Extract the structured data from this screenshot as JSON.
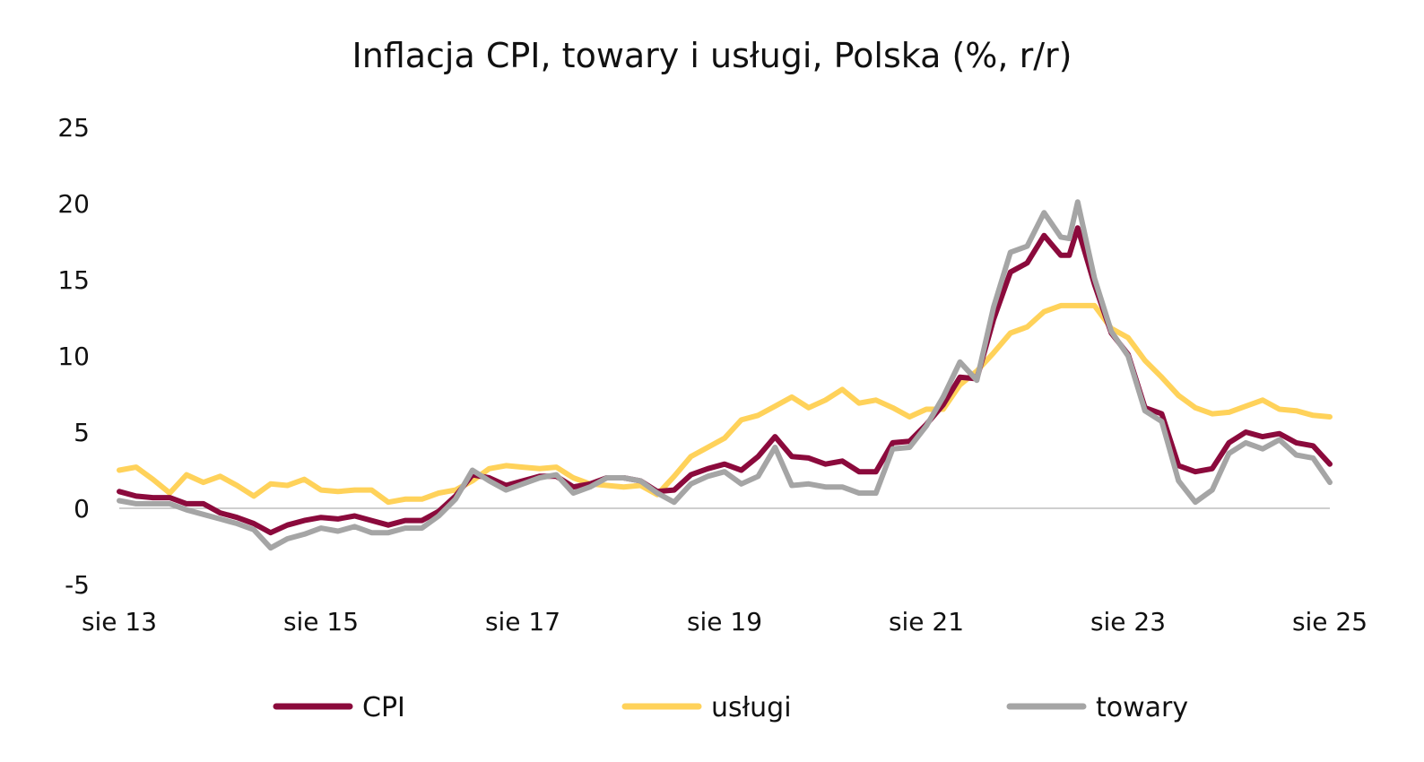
{
  "chart_data": {
    "type": "line",
    "title": "Inflacja CPI, towary i usługi, Polska (%, r/r)",
    "xlabel": "",
    "ylabel": "",
    "x_ticks": [
      "sie 13",
      "sie 15",
      "sie 17",
      "sie 19",
      "sie 21",
      "sie 23",
      "sie 25"
    ],
    "y_ticks": [
      "25",
      "20",
      "15",
      "10",
      "5",
      "0",
      "-5"
    ],
    "ylim": [
      -5,
      25
    ],
    "xlim": [
      "2013-08",
      "2025-08"
    ],
    "grid": false,
    "zero_line": true,
    "legend_position": "bottom",
    "series": [
      {
        "name": "CPI",
        "color": "#8b0a3c",
        "points": [
          [
            "2013-08",
            1.1
          ],
          [
            "2013-10",
            0.8
          ],
          [
            "2013-12",
            0.7
          ],
          [
            "2014-02",
            0.7
          ],
          [
            "2014-04",
            0.3
          ],
          [
            "2014-06",
            0.3
          ],
          [
            "2014-08",
            -0.3
          ],
          [
            "2014-10",
            -0.6
          ],
          [
            "2014-12",
            -1.0
          ],
          [
            "2015-02",
            -1.6
          ],
          [
            "2015-04",
            -1.1
          ],
          [
            "2015-06",
            -0.8
          ],
          [
            "2015-08",
            -0.6
          ],
          [
            "2015-10",
            -0.7
          ],
          [
            "2015-12",
            -0.5
          ],
          [
            "2016-02",
            -0.8
          ],
          [
            "2016-04",
            -1.1
          ],
          [
            "2016-06",
            -0.8
          ],
          [
            "2016-08",
            -0.8
          ],
          [
            "2016-10",
            -0.2
          ],
          [
            "2016-12",
            0.8
          ],
          [
            "2017-02",
            2.2
          ],
          [
            "2017-04",
            2.0
          ],
          [
            "2017-06",
            1.5
          ],
          [
            "2017-08",
            1.8
          ],
          [
            "2017-10",
            2.1
          ],
          [
            "2017-12",
            2.1
          ],
          [
            "2018-02",
            1.4
          ],
          [
            "2018-04",
            1.6
          ],
          [
            "2018-06",
            2.0
          ],
          [
            "2018-08",
            2.0
          ],
          [
            "2018-10",
            1.8
          ],
          [
            "2018-12",
            1.1
          ],
          [
            "2019-02",
            1.2
          ],
          [
            "2019-04",
            2.2
          ],
          [
            "2019-06",
            2.6
          ],
          [
            "2019-08",
            2.9
          ],
          [
            "2019-10",
            2.5
          ],
          [
            "2019-12",
            3.4
          ],
          [
            "2020-02",
            4.7
          ],
          [
            "2020-04",
            3.4
          ],
          [
            "2020-06",
            3.3
          ],
          [
            "2020-08",
            2.9
          ],
          [
            "2020-10",
            3.1
          ],
          [
            "2020-12",
            2.4
          ],
          [
            "2021-02",
            2.4
          ],
          [
            "2021-04",
            4.3
          ],
          [
            "2021-06",
            4.4
          ],
          [
            "2021-08",
            5.5
          ],
          [
            "2021-10",
            6.8
          ],
          [
            "2021-12",
            8.6
          ],
          [
            "2022-02",
            8.5
          ],
          [
            "2022-04",
            12.4
          ],
          [
            "2022-06",
            15.5
          ],
          [
            "2022-08",
            16.1
          ],
          [
            "2022-10",
            17.9
          ],
          [
            "2022-12",
            16.6
          ],
          [
            "2023-01",
            16.6
          ],
          [
            "2023-02",
            18.4
          ],
          [
            "2023-04",
            14.7
          ],
          [
            "2023-06",
            11.5
          ],
          [
            "2023-08",
            10.1
          ],
          [
            "2023-10",
            6.6
          ],
          [
            "2023-12",
            6.2
          ],
          [
            "2024-02",
            2.8
          ],
          [
            "2024-04",
            2.4
          ],
          [
            "2024-06",
            2.6
          ],
          [
            "2024-08",
            4.3
          ],
          [
            "2024-10",
            5.0
          ],
          [
            "2024-12",
            4.7
          ],
          [
            "2025-02",
            4.9
          ],
          [
            "2025-04",
            4.3
          ],
          [
            "2025-06",
            4.1
          ],
          [
            "2025-08",
            2.9
          ]
        ]
      },
      {
        "name": "usługi",
        "color": "#ffd25a",
        "points": [
          [
            "2013-08",
            2.5
          ],
          [
            "2013-10",
            2.7
          ],
          [
            "2013-12",
            1.9
          ],
          [
            "2014-02",
            1.0
          ],
          [
            "2014-04",
            2.2
          ],
          [
            "2014-06",
            1.7
          ],
          [
            "2014-08",
            2.1
          ],
          [
            "2014-10",
            1.5
          ],
          [
            "2014-12",
            0.8
          ],
          [
            "2015-02",
            1.6
          ],
          [
            "2015-04",
            1.5
          ],
          [
            "2015-06",
            1.9
          ],
          [
            "2015-08",
            1.2
          ],
          [
            "2015-10",
            1.1
          ],
          [
            "2015-12",
            1.2
          ],
          [
            "2016-02",
            1.2
          ],
          [
            "2016-04",
            0.4
          ],
          [
            "2016-06",
            0.6
          ],
          [
            "2016-08",
            0.6
          ],
          [
            "2016-10",
            1.0
          ],
          [
            "2016-12",
            1.2
          ],
          [
            "2017-02",
            1.8
          ],
          [
            "2017-04",
            2.6
          ],
          [
            "2017-06",
            2.8
          ],
          [
            "2017-08",
            2.7
          ],
          [
            "2017-10",
            2.6
          ],
          [
            "2017-12",
            2.7
          ],
          [
            "2018-02",
            2.0
          ],
          [
            "2018-04",
            1.6
          ],
          [
            "2018-06",
            1.5
          ],
          [
            "2018-08",
            1.4
          ],
          [
            "2018-10",
            1.5
          ],
          [
            "2018-12",
            0.9
          ],
          [
            "2019-02",
            2.1
          ],
          [
            "2019-04",
            3.4
          ],
          [
            "2019-06",
            4.0
          ],
          [
            "2019-08",
            4.6
          ],
          [
            "2019-10",
            5.8
          ],
          [
            "2019-12",
            6.1
          ],
          [
            "2020-02",
            6.7
          ],
          [
            "2020-04",
            7.3
          ],
          [
            "2020-06",
            6.6
          ],
          [
            "2020-08",
            7.1
          ],
          [
            "2020-10",
            7.8
          ],
          [
            "2020-12",
            6.9
          ],
          [
            "2021-02",
            7.1
          ],
          [
            "2021-04",
            6.6
          ],
          [
            "2021-06",
            6.0
          ],
          [
            "2021-08",
            6.5
          ],
          [
            "2021-10",
            6.5
          ],
          [
            "2021-12",
            8.1
          ],
          [
            "2022-02",
            9.0
          ],
          [
            "2022-04",
            10.2
          ],
          [
            "2022-06",
            11.5
          ],
          [
            "2022-08",
            11.9
          ],
          [
            "2022-10",
            12.9
          ],
          [
            "2022-12",
            13.3
          ],
          [
            "2023-02",
            13.3
          ],
          [
            "2023-04",
            13.3
          ],
          [
            "2023-06",
            11.8
          ],
          [
            "2023-08",
            11.2
          ],
          [
            "2023-10",
            9.7
          ],
          [
            "2023-12",
            8.6
          ],
          [
            "2024-02",
            7.4
          ],
          [
            "2024-04",
            6.6
          ],
          [
            "2024-06",
            6.2
          ],
          [
            "2024-08",
            6.3
          ],
          [
            "2024-10",
            6.7
          ],
          [
            "2024-12",
            7.1
          ],
          [
            "2025-02",
            6.5
          ],
          [
            "2025-04",
            6.4
          ],
          [
            "2025-06",
            6.1
          ],
          [
            "2025-08",
            6.0
          ]
        ]
      },
      {
        "name": "towary",
        "color": "#a5a5a5",
        "points": [
          [
            "2013-08",
            0.5
          ],
          [
            "2013-10",
            0.3
          ],
          [
            "2013-12",
            0.3
          ],
          [
            "2014-02",
            0.3
          ],
          [
            "2014-04",
            -0.1
          ],
          [
            "2014-06",
            -0.4
          ],
          [
            "2014-08",
            -0.7
          ],
          [
            "2014-10",
            -1.0
          ],
          [
            "2014-12",
            -1.4
          ],
          [
            "2015-02",
            -2.6
          ],
          [
            "2015-04",
            -2.0
          ],
          [
            "2015-06",
            -1.7
          ],
          [
            "2015-08",
            -1.3
          ],
          [
            "2015-10",
            -1.5
          ],
          [
            "2015-12",
            -1.2
          ],
          [
            "2016-02",
            -1.6
          ],
          [
            "2016-04",
            -1.6
          ],
          [
            "2016-06",
            -1.3
          ],
          [
            "2016-08",
            -1.3
          ],
          [
            "2016-10",
            -0.5
          ],
          [
            "2016-12",
            0.6
          ],
          [
            "2017-02",
            2.5
          ],
          [
            "2017-04",
            1.8
          ],
          [
            "2017-06",
            1.2
          ],
          [
            "2017-08",
            1.6
          ],
          [
            "2017-10",
            2.0
          ],
          [
            "2017-12",
            2.2
          ],
          [
            "2018-02",
            1.0
          ],
          [
            "2018-04",
            1.4
          ],
          [
            "2018-06",
            2.0
          ],
          [
            "2018-08",
            2.0
          ],
          [
            "2018-10",
            1.8
          ],
          [
            "2018-12",
            1.0
          ],
          [
            "2019-02",
            0.4
          ],
          [
            "2019-04",
            1.6
          ],
          [
            "2019-06",
            2.1
          ],
          [
            "2019-08",
            2.4
          ],
          [
            "2019-10",
            1.6
          ],
          [
            "2019-12",
            2.1
          ],
          [
            "2020-02",
            4.0
          ],
          [
            "2020-04",
            1.5
          ],
          [
            "2020-06",
            1.6
          ],
          [
            "2020-08",
            1.4
          ],
          [
            "2020-10",
            1.4
          ],
          [
            "2020-12",
            1.0
          ],
          [
            "2021-02",
            1.0
          ],
          [
            "2021-04",
            3.9
          ],
          [
            "2021-06",
            4.0
          ],
          [
            "2021-08",
            5.4
          ],
          [
            "2021-10",
            7.3
          ],
          [
            "2021-12",
            9.6
          ],
          [
            "2022-02",
            8.4
          ],
          [
            "2022-04",
            13.2
          ],
          [
            "2022-06",
            16.8
          ],
          [
            "2022-08",
            17.2
          ],
          [
            "2022-10",
            19.4
          ],
          [
            "2022-12",
            17.8
          ],
          [
            "2023-01",
            17.7
          ],
          [
            "2023-02",
            20.1
          ],
          [
            "2023-04",
            15.1
          ],
          [
            "2023-06",
            11.6
          ],
          [
            "2023-08",
            10.0
          ],
          [
            "2023-10",
            6.4
          ],
          [
            "2023-12",
            5.7
          ],
          [
            "2024-02",
            1.8
          ],
          [
            "2024-04",
            0.4
          ],
          [
            "2024-06",
            1.2
          ],
          [
            "2024-08",
            3.6
          ],
          [
            "2024-10",
            4.3
          ],
          [
            "2024-12",
            3.9
          ],
          [
            "2025-02",
            4.5
          ],
          [
            "2025-04",
            3.5
          ],
          [
            "2025-06",
            3.3
          ],
          [
            "2025-08",
            1.7
          ]
        ]
      }
    ]
  }
}
